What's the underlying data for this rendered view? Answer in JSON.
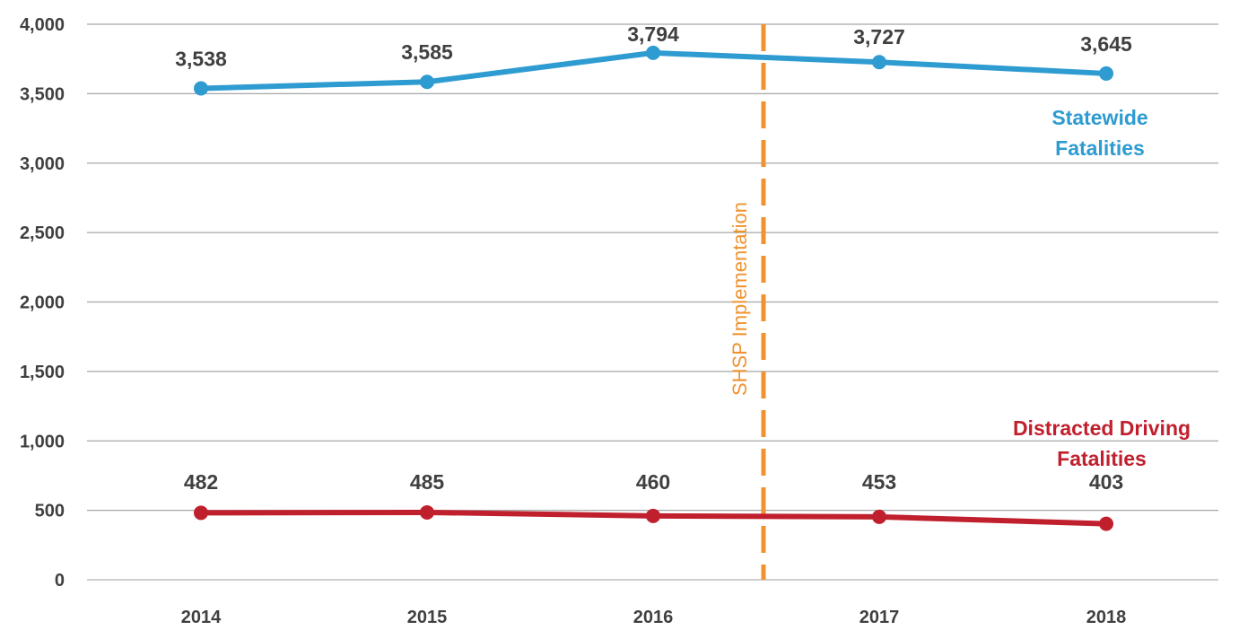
{
  "chart_data": {
    "type": "line",
    "title": "",
    "xlabel": "",
    "ylabel": "",
    "categories": [
      "2014",
      "2015",
      "2016",
      "2017",
      "2018"
    ],
    "ylim": [
      0,
      4000
    ],
    "yticks": [
      0,
      500,
      1000,
      1500,
      2000,
      2500,
      3000,
      3500,
      4000
    ],
    "ytick_labels": [
      "0",
      "500",
      "1,000",
      "1,500",
      "2,000",
      "2,500",
      "3,000",
      "3,500",
      "4,000"
    ],
    "grid": "horizontal",
    "series": [
      {
        "name": "Statewide Fatalities",
        "name_lines": [
          "Statewide",
          "Fatalities"
        ],
        "color": "#2e9bd1",
        "values": [
          3538,
          3585,
          3794,
          3727,
          3645
        ],
        "labels": [
          "3,538",
          "3,585",
          "3,794",
          "3,727",
          "3,645"
        ]
      },
      {
        "name": "Distracted Driving Fatalities",
        "name_lines": [
          "Distracted Driving",
          "Fatalities"
        ],
        "color": "#c0202e",
        "values": [
          482,
          485,
          460,
          453,
          403
        ],
        "labels": [
          "482",
          "485",
          "460",
          "453",
          "403"
        ]
      }
    ],
    "annotations": [
      {
        "type": "vertical-dashed-line",
        "x_between": [
          "2016",
          "2017"
        ],
        "label": "SHSP Implementation",
        "color": "#f0922f"
      }
    ]
  }
}
